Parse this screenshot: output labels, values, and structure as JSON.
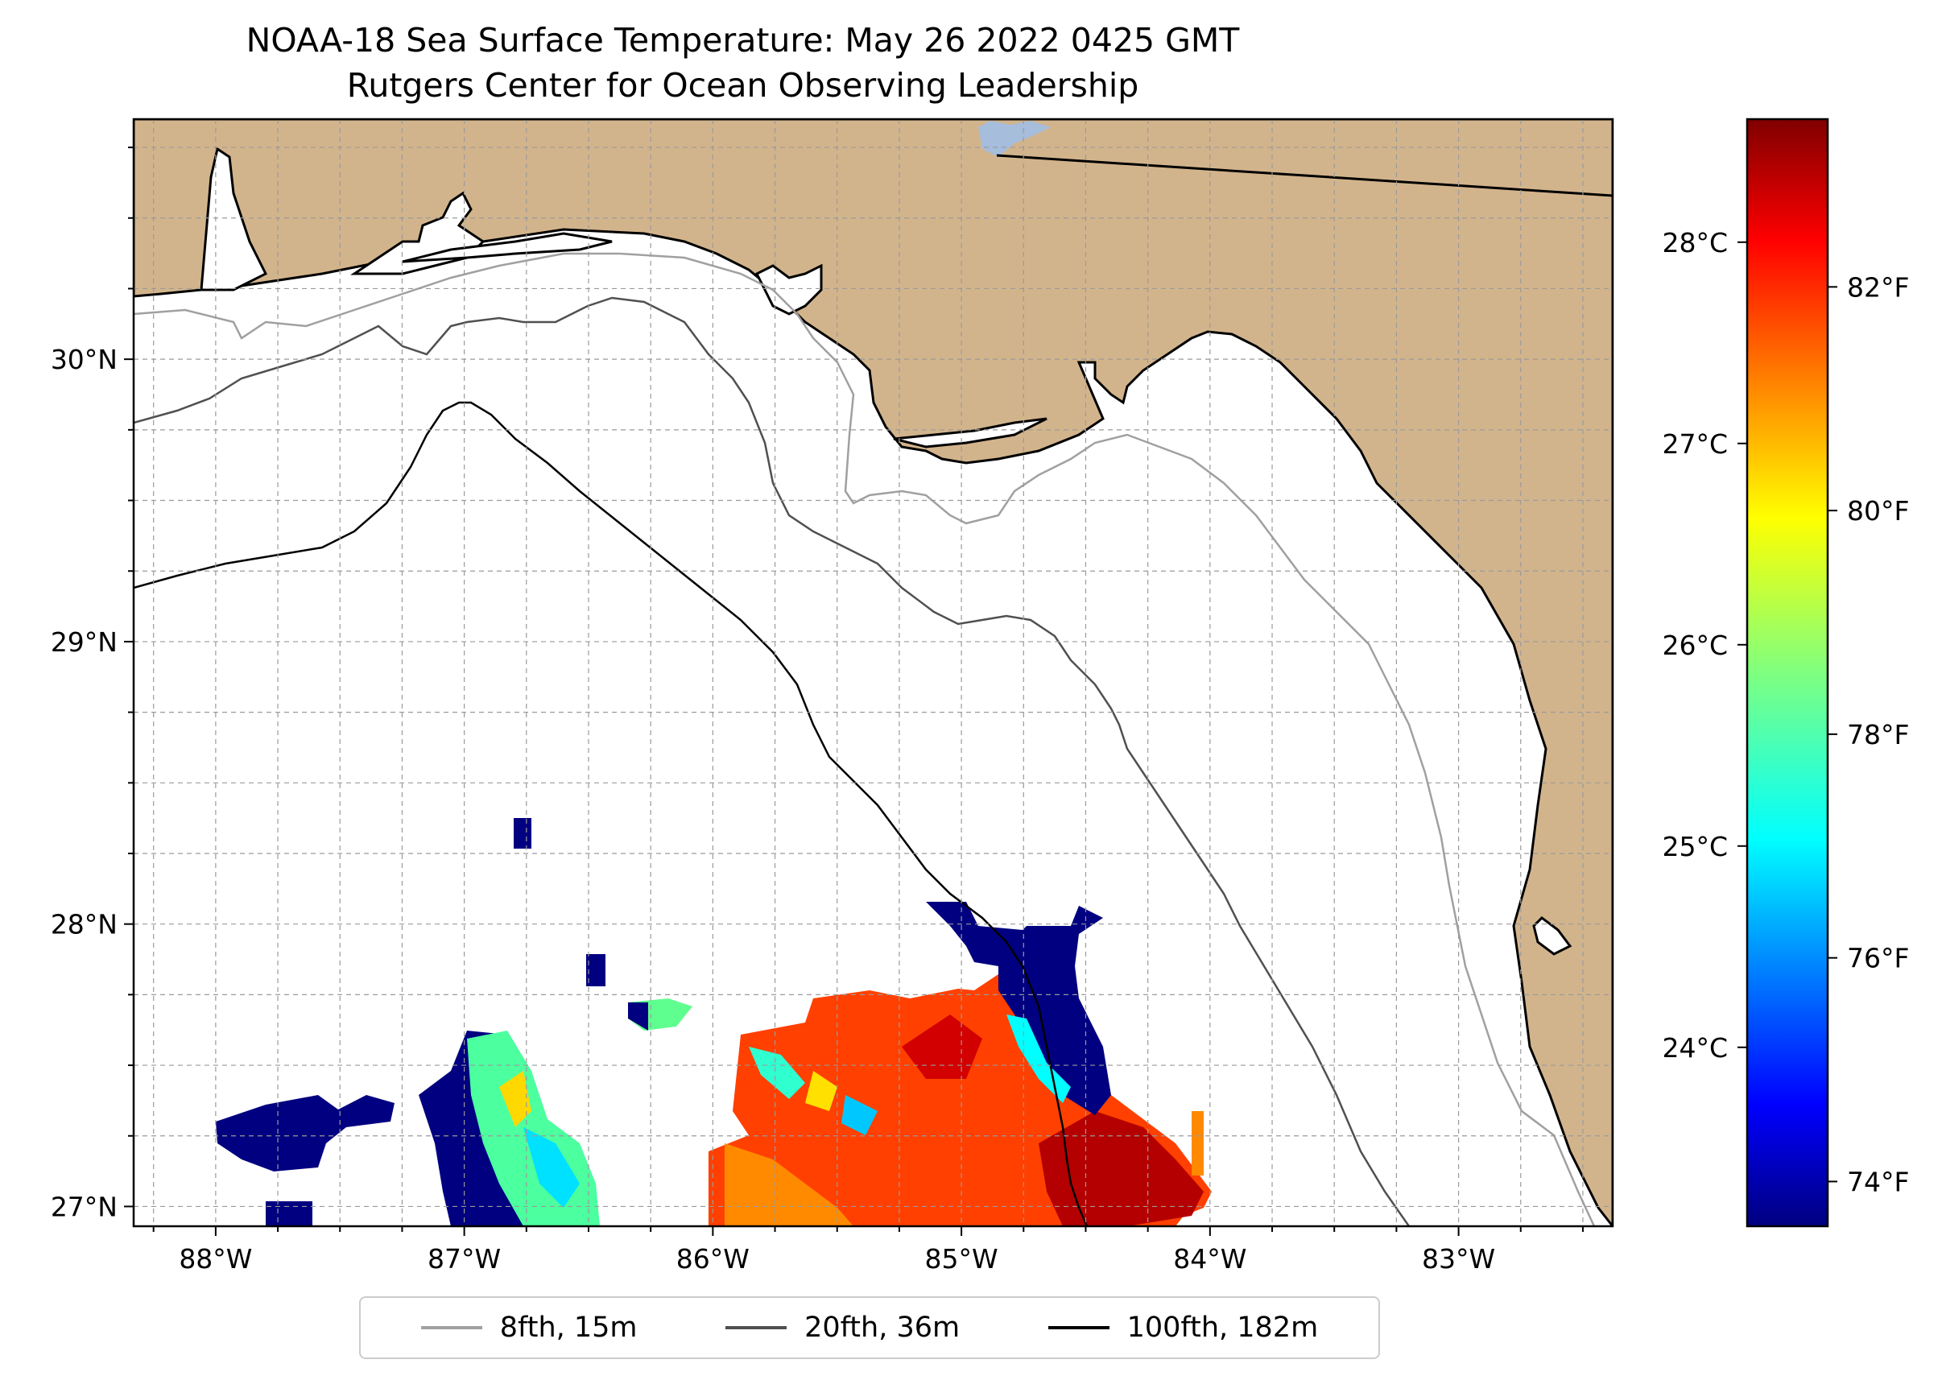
{
  "title": {
    "line1": "NOAA-18 Sea Surface Temperature: May 26 2022 0425 GMT",
    "line2": "Rutgers Center for Ocean Observing Leadership"
  },
  "map": {
    "extent": {
      "lon_min": -88.33,
      "lon_max": -82.38,
      "lat_min": 26.93,
      "lat_max": 30.85
    },
    "lon_ticks": [
      {
        "value": -88,
        "label": "88°W"
      },
      {
        "value": -87,
        "label": "87°W"
      },
      {
        "value": -86,
        "label": "86°W"
      },
      {
        "value": -85,
        "label": "85°W"
      },
      {
        "value": -84,
        "label": "84°W"
      },
      {
        "value": -83,
        "label": "83°W"
      }
    ],
    "lat_ticks": [
      {
        "value": 27,
        "label": "27°N"
      },
      {
        "value": 28,
        "label": "28°N"
      },
      {
        "value": 29,
        "label": "29°N"
      },
      {
        "value": 30,
        "label": "30°N"
      }
    ],
    "land_color": "#d2b48c",
    "lake_color": "#a6bddb"
  },
  "colorbar": {
    "range_f": [
      73.6,
      83.5
    ],
    "celsius_ticks": [
      {
        "value": 24,
        "label": "24°C"
      },
      {
        "value": 25,
        "label": "25°C"
      },
      {
        "value": 26,
        "label": "26°C"
      },
      {
        "value": 27,
        "label": "27°C"
      },
      {
        "value": 28,
        "label": "28°C"
      }
    ],
    "fahrenheit_ticks": [
      {
        "value": 74,
        "label": "74°F"
      },
      {
        "value": 76,
        "label": "76°F"
      },
      {
        "value": 78,
        "label": "78°F"
      },
      {
        "value": 80,
        "label": "80°F"
      },
      {
        "value": 82,
        "label": "82°F"
      }
    ]
  },
  "legend": {
    "items": [
      {
        "label": "8fth, 15m",
        "color": "#a0a0a0"
      },
      {
        "label": "20fth, 36m",
        "color": "#505050"
      },
      {
        "label": "100fth, 182m",
        "color": "#000000"
      }
    ]
  }
}
